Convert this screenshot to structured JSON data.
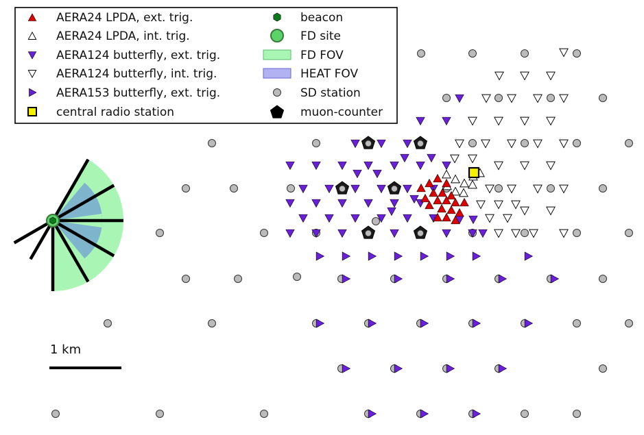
{
  "legend": [
    {
      "symbol": "tri-up-red",
      "label": "AERA24 LPDA, ext. trig."
    },
    {
      "symbol": "tri-up-white",
      "label": "AERA24 LPDA, int. trig."
    },
    {
      "symbol": "tri-down-purple",
      "label": "AERA124 butterfly, ext. trig."
    },
    {
      "symbol": "tri-down-white",
      "label": "AERA124 butterfly, int. trig."
    },
    {
      "symbol": "tri-right-purple",
      "label": "AERA153 butterfly, ext. trig."
    },
    {
      "symbol": "square-yellow",
      "label": "central radio station"
    },
    {
      "symbol": "hexagon-green",
      "label": "beacon"
    },
    {
      "symbol": "circle-green",
      "label": "FD site"
    },
    {
      "symbol": "rect-green",
      "label": "FD FOV"
    },
    {
      "symbol": "rect-blue",
      "label": "HEAT FOV"
    },
    {
      "symbol": "circle-gray",
      "label": "SD station"
    },
    {
      "symbol": "pentagon-black",
      "label": "muon-counter"
    }
  ],
  "scale_bar": {
    "label": "1 km"
  },
  "colors": {
    "lpda_ext": "#dd0000",
    "butterfly_ext": "#6a1fd8",
    "fd_fov": "#a8f5b4",
    "heat_fov": "#7fb5cc",
    "sd_station": "#bbbbbb",
    "central_station": "#f4f000",
    "beacon": "#0a7a1a",
    "fd_site": "#5cd36a"
  }
}
